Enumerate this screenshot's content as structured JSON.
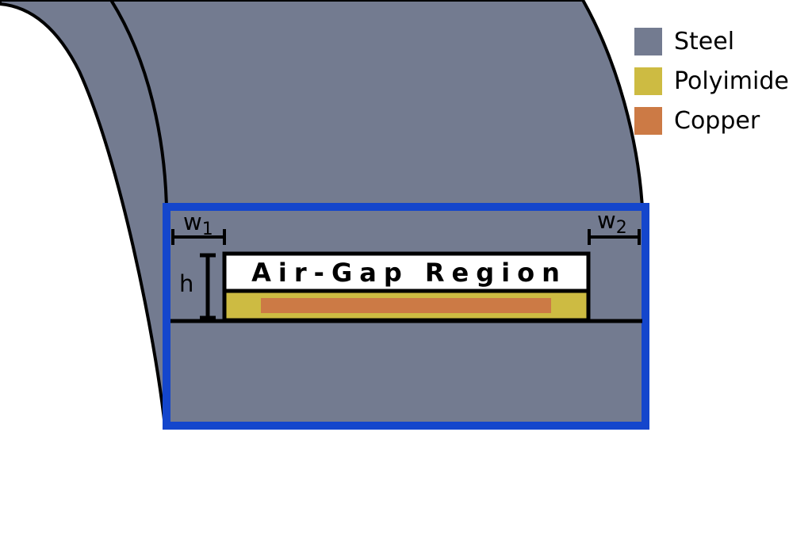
{
  "legend": {
    "items": [
      {
        "label": "Steel",
        "color": "#737b90"
      },
      {
        "label": "Polyimide",
        "color": "#cdbb42"
      },
      {
        "label": "Copper",
        "color": "#cc7a45"
      }
    ]
  },
  "diagram": {
    "region_label": "Air-Gap Region",
    "dim_w1_base": "w",
    "dim_w1_sub": "1",
    "dim_w2_base": "w",
    "dim_w2_sub": "2",
    "dim_h": "h",
    "highlight_color": "#1446cc",
    "outline_color": "#000000"
  }
}
